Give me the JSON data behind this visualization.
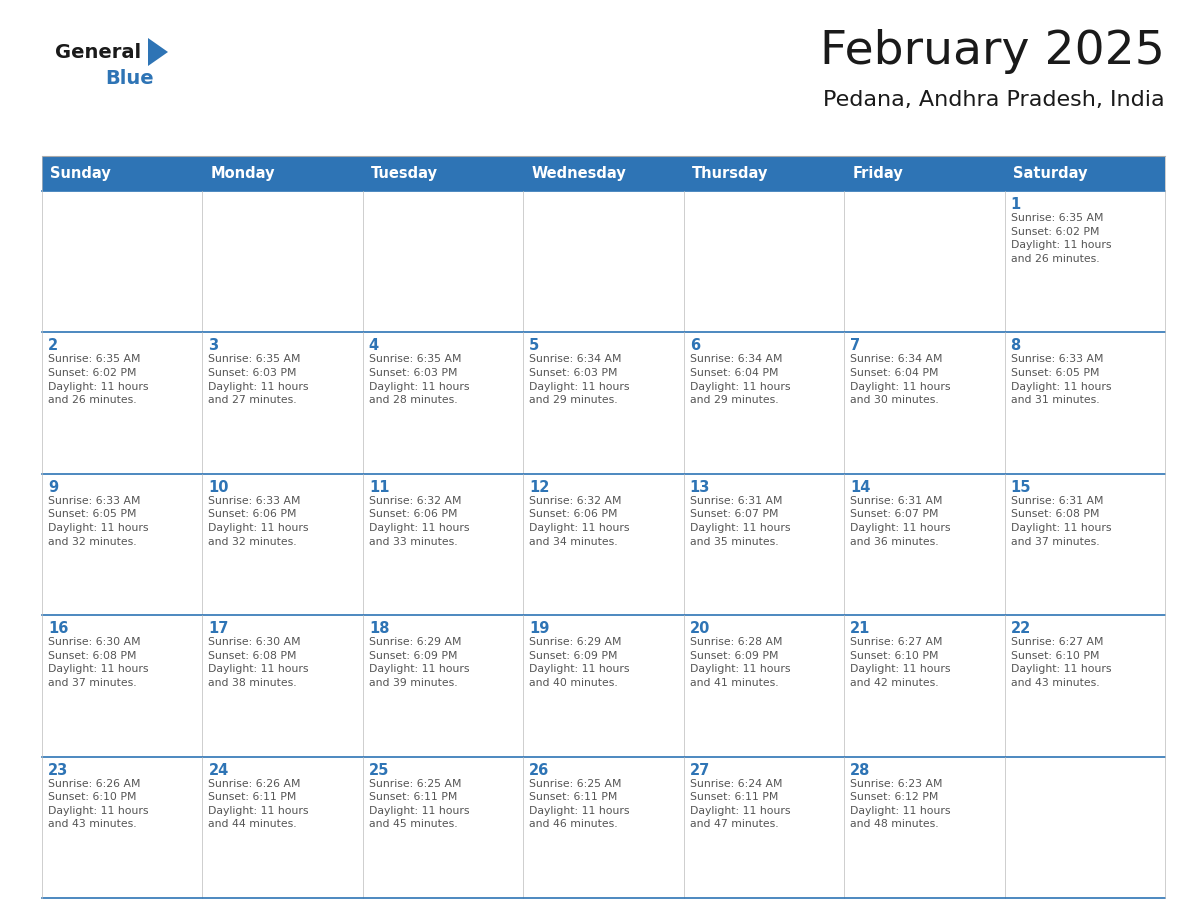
{
  "title": "February 2025",
  "subtitle": "Pedana, Andhra Pradesh, India",
  "header_bg": "#2E74B5",
  "header_text_color": "#FFFFFF",
  "days_of_week": [
    "Sunday",
    "Monday",
    "Tuesday",
    "Wednesday",
    "Thursday",
    "Friday",
    "Saturday"
  ],
  "cell_bg": "#FFFFFF",
  "cell_border_color": "#BBBBBB",
  "row_border_color": "#2E74B5",
  "day_number_color": "#2E74B5",
  "info_text_color": "#555555",
  "background_color": "#FFFFFF",
  "logo_general_color": "#1a1a1a",
  "logo_blue_color": "#2E74B5",
  "title_color": "#1a1a1a",
  "subtitle_color": "#1a1a1a",
  "calendar_data": [
    [
      {
        "day": null,
        "info": ""
      },
      {
        "day": null,
        "info": ""
      },
      {
        "day": null,
        "info": ""
      },
      {
        "day": null,
        "info": ""
      },
      {
        "day": null,
        "info": ""
      },
      {
        "day": null,
        "info": ""
      },
      {
        "day": 1,
        "info": "Sunrise: 6:35 AM\nSunset: 6:02 PM\nDaylight: 11 hours\nand 26 minutes."
      }
    ],
    [
      {
        "day": 2,
        "info": "Sunrise: 6:35 AM\nSunset: 6:02 PM\nDaylight: 11 hours\nand 26 minutes."
      },
      {
        "day": 3,
        "info": "Sunrise: 6:35 AM\nSunset: 6:03 PM\nDaylight: 11 hours\nand 27 minutes."
      },
      {
        "day": 4,
        "info": "Sunrise: 6:35 AM\nSunset: 6:03 PM\nDaylight: 11 hours\nand 28 minutes."
      },
      {
        "day": 5,
        "info": "Sunrise: 6:34 AM\nSunset: 6:03 PM\nDaylight: 11 hours\nand 29 minutes."
      },
      {
        "day": 6,
        "info": "Sunrise: 6:34 AM\nSunset: 6:04 PM\nDaylight: 11 hours\nand 29 minutes."
      },
      {
        "day": 7,
        "info": "Sunrise: 6:34 AM\nSunset: 6:04 PM\nDaylight: 11 hours\nand 30 minutes."
      },
      {
        "day": 8,
        "info": "Sunrise: 6:33 AM\nSunset: 6:05 PM\nDaylight: 11 hours\nand 31 minutes."
      }
    ],
    [
      {
        "day": 9,
        "info": "Sunrise: 6:33 AM\nSunset: 6:05 PM\nDaylight: 11 hours\nand 32 minutes."
      },
      {
        "day": 10,
        "info": "Sunrise: 6:33 AM\nSunset: 6:06 PM\nDaylight: 11 hours\nand 32 minutes."
      },
      {
        "day": 11,
        "info": "Sunrise: 6:32 AM\nSunset: 6:06 PM\nDaylight: 11 hours\nand 33 minutes."
      },
      {
        "day": 12,
        "info": "Sunrise: 6:32 AM\nSunset: 6:06 PM\nDaylight: 11 hours\nand 34 minutes."
      },
      {
        "day": 13,
        "info": "Sunrise: 6:31 AM\nSunset: 6:07 PM\nDaylight: 11 hours\nand 35 minutes."
      },
      {
        "day": 14,
        "info": "Sunrise: 6:31 AM\nSunset: 6:07 PM\nDaylight: 11 hours\nand 36 minutes."
      },
      {
        "day": 15,
        "info": "Sunrise: 6:31 AM\nSunset: 6:08 PM\nDaylight: 11 hours\nand 37 minutes."
      }
    ],
    [
      {
        "day": 16,
        "info": "Sunrise: 6:30 AM\nSunset: 6:08 PM\nDaylight: 11 hours\nand 37 minutes."
      },
      {
        "day": 17,
        "info": "Sunrise: 6:30 AM\nSunset: 6:08 PM\nDaylight: 11 hours\nand 38 minutes."
      },
      {
        "day": 18,
        "info": "Sunrise: 6:29 AM\nSunset: 6:09 PM\nDaylight: 11 hours\nand 39 minutes."
      },
      {
        "day": 19,
        "info": "Sunrise: 6:29 AM\nSunset: 6:09 PM\nDaylight: 11 hours\nand 40 minutes."
      },
      {
        "day": 20,
        "info": "Sunrise: 6:28 AM\nSunset: 6:09 PM\nDaylight: 11 hours\nand 41 minutes."
      },
      {
        "day": 21,
        "info": "Sunrise: 6:27 AM\nSunset: 6:10 PM\nDaylight: 11 hours\nand 42 minutes."
      },
      {
        "day": 22,
        "info": "Sunrise: 6:27 AM\nSunset: 6:10 PM\nDaylight: 11 hours\nand 43 minutes."
      }
    ],
    [
      {
        "day": 23,
        "info": "Sunrise: 6:26 AM\nSunset: 6:10 PM\nDaylight: 11 hours\nand 43 minutes."
      },
      {
        "day": 24,
        "info": "Sunrise: 6:26 AM\nSunset: 6:11 PM\nDaylight: 11 hours\nand 44 minutes."
      },
      {
        "day": 25,
        "info": "Sunrise: 6:25 AM\nSunset: 6:11 PM\nDaylight: 11 hours\nand 45 minutes."
      },
      {
        "day": 26,
        "info": "Sunrise: 6:25 AM\nSunset: 6:11 PM\nDaylight: 11 hours\nand 46 minutes."
      },
      {
        "day": 27,
        "info": "Sunrise: 6:24 AM\nSunset: 6:11 PM\nDaylight: 11 hours\nand 47 minutes."
      },
      {
        "day": 28,
        "info": "Sunrise: 6:23 AM\nSunset: 6:12 PM\nDaylight: 11 hours\nand 48 minutes."
      },
      {
        "day": null,
        "info": ""
      }
    ]
  ]
}
